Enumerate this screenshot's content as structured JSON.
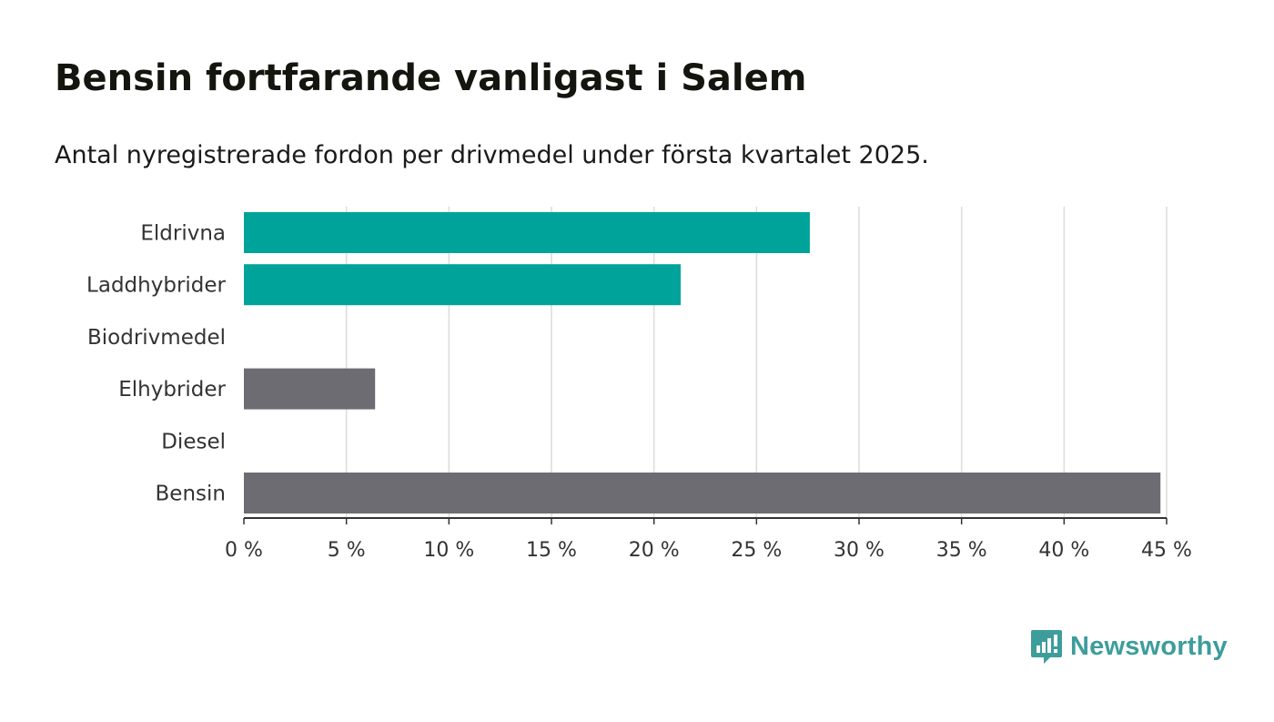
{
  "header": {
    "title": "Bensin fortfarande vanligast i Salem",
    "subtitle": "Antal nyregistrerade fordon per drivmedel under första kvartalet 2025."
  },
  "brand": {
    "name": "Newsworthy",
    "icon": "newsworthy-logo-icon",
    "color": "#3d9d9b"
  },
  "chart_data": {
    "type": "bar",
    "orientation": "horizontal",
    "categories": [
      "Eldrivna",
      "Laddhybrider",
      "Biodrivmedel",
      "Elhybrider",
      "Diesel",
      "Bensin"
    ],
    "values": [
      27.6,
      21.3,
      0,
      6.4,
      0,
      44.7
    ],
    "colors": [
      "#00a39a",
      "#00a39a",
      "#00a39a",
      "#6e6c73",
      "#6e6c73",
      "#6e6c73"
    ],
    "xlim": [
      0,
      45
    ],
    "xticks": [
      0,
      5,
      10,
      15,
      20,
      25,
      30,
      35,
      40,
      45
    ],
    "tick_labels": [
      "0 %",
      "5 %",
      "10 %",
      "15 %",
      "20 %",
      "25 %",
      "30 %",
      "35 %",
      "40 %",
      "45 %"
    ],
    "grid": true,
    "legend": "none"
  }
}
